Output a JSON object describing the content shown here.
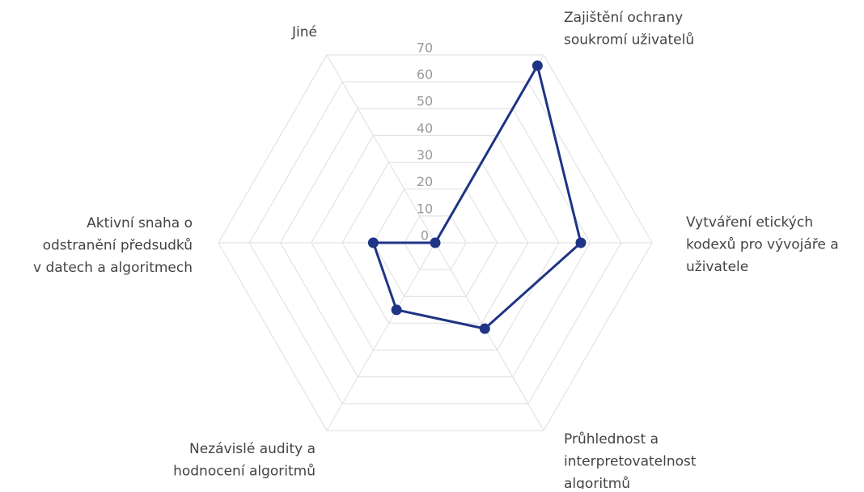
{
  "chart_data": {
    "type": "radar",
    "categories": [
      [
        "Zajištění ochrany",
        "soukromí uživatelů"
      ],
      [
        "Vytváření etických",
        "kodexů pro vývojáře a",
        "uživatele"
      ],
      [
        "Průhlednost a",
        "interpretovatelnost",
        "algoritmů"
      ],
      [
        "Nezávislé audity a",
        "hodnocení algoritmů"
      ],
      [
        "Aktivní snaha o",
        "odstranění předsudků",
        "v datech a algoritmech"
      ],
      [
        "Jiné"
      ]
    ],
    "values": [
      66,
      47,
      32,
      25,
      20,
      0
    ],
    "color": "#1f3485",
    "ylim": [
      0,
      70
    ],
    "yticks": [
      0,
      10,
      20,
      30,
      40,
      50,
      60,
      70
    ],
    "grid": true
  }
}
